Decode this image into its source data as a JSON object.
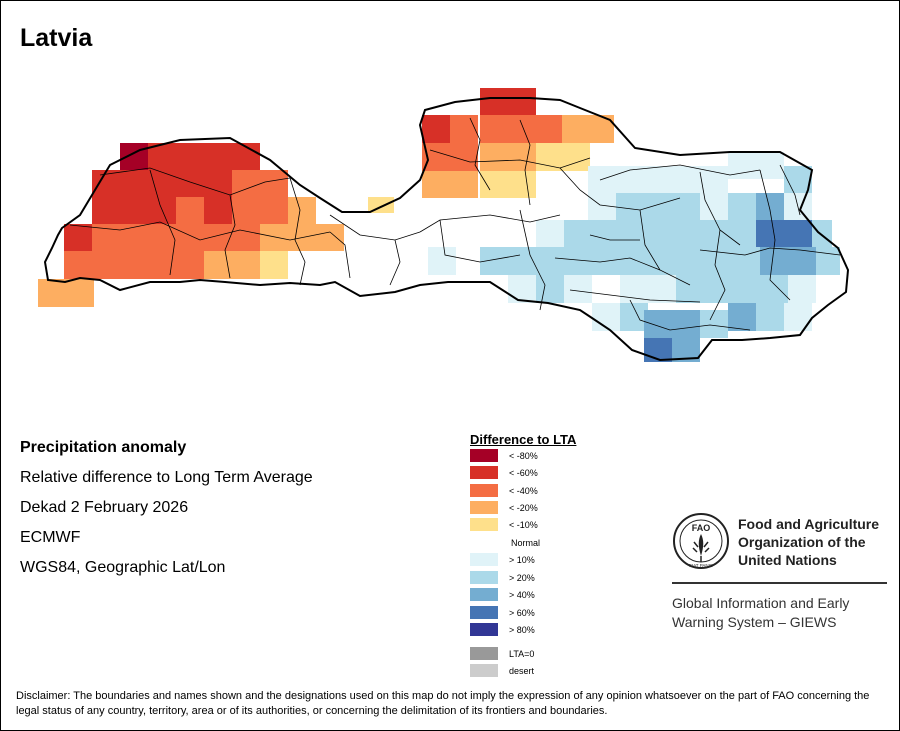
{
  "title": "Latvia",
  "info": {
    "heading": "Precipitation anomaly",
    "subtitle": "Relative difference to Long Term Average",
    "period": "Dekad 2 February 2026",
    "source": "ECMWF",
    "projection": "WGS84, Geographic Lat/Lon"
  },
  "legend": {
    "title": "Difference to LTA",
    "items": [
      {
        "label": "< -80%",
        "color": "#a50026"
      },
      {
        "label": "< -60%",
        "color": "#d73027"
      },
      {
        "label": "< -40%",
        "color": "#f46d43"
      },
      {
        "label": "< -20%",
        "color": "#fdae61"
      },
      {
        "label": "< -10%",
        "color": "#fee08b"
      },
      {
        "label": "Normal",
        "color": "#ffffff"
      },
      {
        "label": "> 10%",
        "color": "#e0f3f8"
      },
      {
        "label": "> 20%",
        "color": "#abd9e9"
      },
      {
        "label": "> 40%",
        "color": "#74add1"
      },
      {
        "label": "> 60%",
        "color": "#4575b4"
      },
      {
        "label": "> 80%",
        "color": "#313695"
      },
      {
        "label": "LTA=0",
        "color": "#999999"
      },
      {
        "label": "desert",
        "color": "#cccccc"
      }
    ]
  },
  "organization": {
    "logo_text": "FAO",
    "logo_motto": "FIAT PANIS",
    "name_line1": "Food and Agriculture",
    "name_line2": "Organization of the",
    "name_line3": "United Nations",
    "system_line1": "Global Information and Early",
    "system_line2": "Warning System – GIEWS"
  },
  "disclaimer": "Disclaimer: The boundaries and names shown and the designations used on this map do not imply the expression of any opinion whatsoever on the part of FAO concerning the legal status of any country, territory, area or of its authorities, or concerning the delimitation of its frontiers and boundaries."
}
